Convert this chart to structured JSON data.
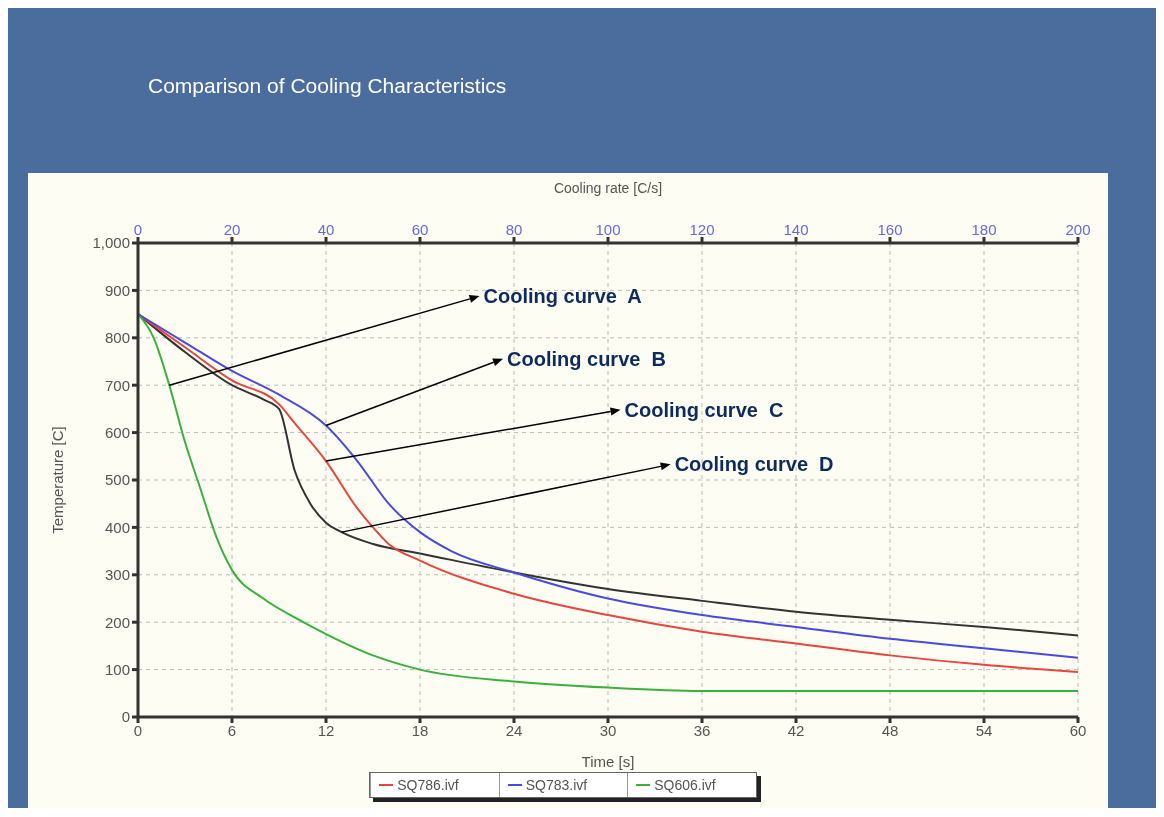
{
  "chart_data": {
    "type": "line",
    "title": "Comparison of Cooling Characteristics",
    "xlabel": "Time [s]",
    "ylabel": "Temperature [C]",
    "x2label": "Cooling rate [C/s]",
    "xlim": [
      0,
      60
    ],
    "xticks": [
      0,
      6,
      12,
      18,
      24,
      30,
      36,
      42,
      48,
      54,
      60
    ],
    "x2lim": [
      0,
      200
    ],
    "x2ticks": [
      0,
      20,
      40,
      60,
      80,
      100,
      120,
      140,
      160,
      180,
      200
    ],
    "ylim": [
      0,
      1000
    ],
    "yticks": [
      {
        "value": 0,
        "label": "0"
      },
      {
        "value": 100,
        "label": "100"
      },
      {
        "value": 200,
        "label": "200"
      },
      {
        "value": 300,
        "label": "300"
      },
      {
        "value": 400,
        "label": "400"
      },
      {
        "value": 500,
        "label": "500"
      },
      {
        "value": 600,
        "label": "600"
      },
      {
        "value": 700,
        "label": "700"
      },
      {
        "value": 800,
        "label": "800"
      },
      {
        "value": 900,
        "label": "900"
      },
      {
        "value": 1000,
        "label": "1,000"
      }
    ],
    "grid": true,
    "legend": "bottom",
    "marker": "none",
    "line_style": "solid",
    "series": [
      {
        "color": "#333333",
        "x": [
          0,
          3,
          6,
          8,
          9,
          10,
          11,
          12,
          13,
          15,
          18,
          24,
          30,
          36,
          42,
          48,
          54,
          60
        ],
        "values": [
          850,
          770,
          700,
          670,
          650,
          520,
          450,
          410,
          390,
          365,
          345,
          305,
          270,
          245,
          222,
          205,
          190,
          172
        ]
      },
      {
        "name": "SQ786.ivf",
        "color": "#e8463c",
        "x": [
          0,
          3,
          6,
          9,
          10,
          12,
          14,
          15,
          16,
          18,
          24,
          30,
          36,
          42,
          48,
          54,
          60
        ],
        "values": [
          850,
          780,
          710,
          660,
          620,
          540,
          440,
          400,
          365,
          330,
          260,
          215,
          180,
          155,
          130,
          110,
          95
        ]
      },
      {
        "name": "SQ783.ivf",
        "color": "#4a4ae0",
        "x": [
          0,
          3,
          6,
          9,
          12,
          14,
          16,
          18,
          20,
          24,
          30,
          36,
          42,
          48,
          54,
          60
        ],
        "values": [
          850,
          790,
          730,
          680,
          615,
          540,
          450,
          390,
          350,
          305,
          250,
          215,
          190,
          165,
          145,
          125
        ]
      },
      {
        "name": "SQ606.ivf",
        "color": "#3cb03c",
        "x": [
          0,
          1,
          2,
          3,
          4,
          5,
          6,
          8,
          10,
          12,
          15,
          18,
          24,
          30,
          36,
          48,
          60
        ],
        "values": [
          850,
          800,
          700,
          580,
          480,
          380,
          310,
          250,
          210,
          175,
          130,
          100,
          75,
          62,
          55,
          55,
          55
        ]
      }
    ],
    "annotations": [
      {
        "text": "Cooling curve  A",
        "x": 2,
        "y": 700
      },
      {
        "text": "Cooling curve  B",
        "x": 12,
        "y": 615
      },
      {
        "text": "Cooling curve  C",
        "x": 12,
        "y": 540
      },
      {
        "text": "Cooling curve  D",
        "x": 13,
        "y": 390
      }
    ]
  }
}
